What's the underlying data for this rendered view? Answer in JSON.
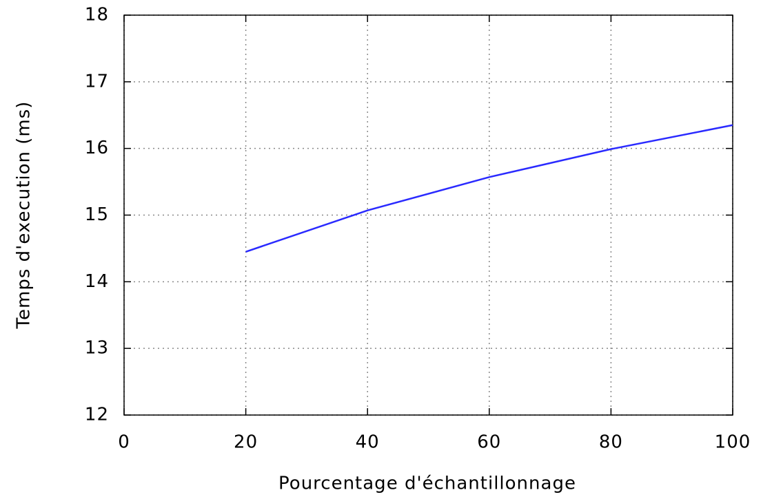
{
  "chart_data": {
    "type": "line",
    "x_label": "Pourcentage d'échantillonnage",
    "y_label": "Temps d'execution (ms)",
    "x": [
      20,
      40,
      60,
      80,
      100
    ],
    "series": [
      {
        "color": "#2a2aff",
        "values": [
          14.45,
          15.07,
          15.57,
          15.99,
          16.35
        ]
      }
    ],
    "xlim": [
      0,
      100
    ],
    "xticks": [
      0,
      20,
      40,
      60,
      80,
      100
    ],
    "ylim": [
      12,
      18
    ],
    "yticks": [
      12,
      13,
      14,
      15,
      16,
      17,
      18
    ],
    "grid": true
  }
}
